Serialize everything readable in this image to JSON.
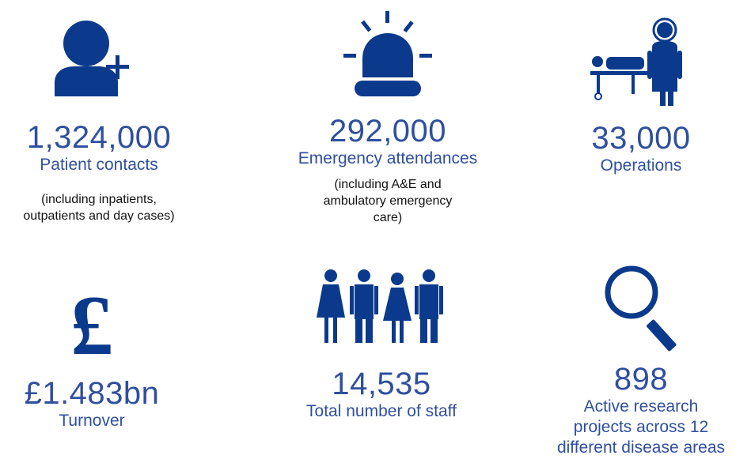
{
  "accent_color": "#0b3a8c",
  "stats": [
    {
      "icon": "add-person-icon",
      "value": "1,324,000",
      "label": "Patient contacts",
      "note": [
        "(including inpatients,",
        "outpatients and day cases)"
      ]
    },
    {
      "icon": "emergency-light-icon",
      "value": "292,000",
      "label": "Emergency attendances",
      "note": [
        "(including A&E and",
        "ambulatory emergency",
        "care)"
      ]
    },
    {
      "icon": "surgeon-operating-table-icon",
      "value": "33,000",
      "label": "Operations"
    },
    {
      "icon": "pound-sign-icon",
      "value": "£1.483bn",
      "label": "Turnover"
    },
    {
      "icon": "staff-group-icon",
      "value": "14,535",
      "label": "Total number of staff"
    },
    {
      "icon": "magnifying-glass-icon",
      "value": "898",
      "label": [
        "Active research",
        "projects across 12",
        "different disease areas"
      ]
    }
  ]
}
